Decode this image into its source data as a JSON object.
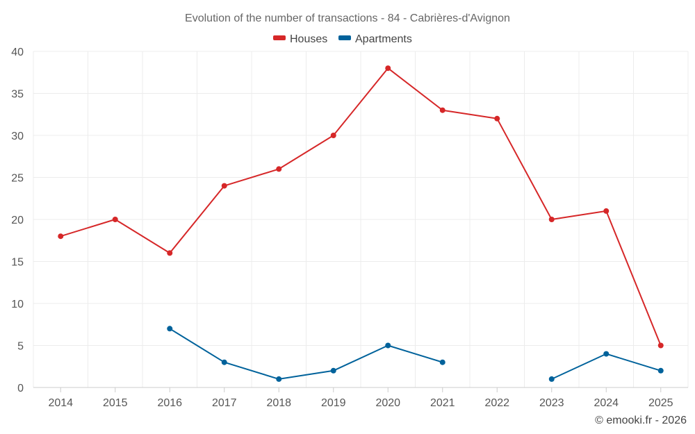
{
  "chart_data": {
    "type": "line",
    "title": "Evolution of the number of transactions - 84 - Cabrières-d'Avignon",
    "categories": [
      "2014",
      "2015",
      "2016",
      "2017",
      "2018",
      "2019",
      "2020",
      "2021",
      "2022",
      "2023",
      "2024",
      "2025"
    ],
    "series": [
      {
        "name": "Houses",
        "color": "#d62728",
        "values": [
          18,
          20,
          16,
          24,
          26,
          30,
          38,
          33,
          32,
          20,
          21,
          5
        ]
      },
      {
        "name": "Apartments",
        "color": "#00629b",
        "values": [
          null,
          null,
          7,
          3,
          1,
          2,
          5,
          3,
          null,
          1,
          4,
          2
        ]
      }
    ],
    "yticks": [
      0,
      5,
      10,
      15,
      20,
      25,
      30,
      35,
      40
    ],
    "ylim": [
      0,
      40
    ],
    "xlabel": "",
    "ylabel": "",
    "grid": true,
    "legend": "top-center"
  },
  "credit": "© emooki.fr - 2026"
}
